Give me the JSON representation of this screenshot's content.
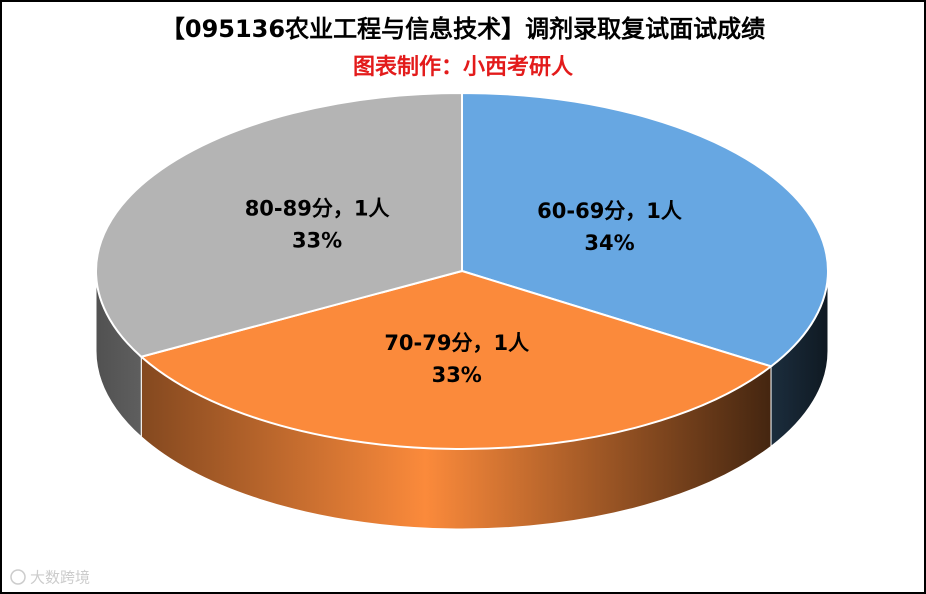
{
  "chart_data": {
    "type": "pie3d",
    "title": "【095136农业工程与信息技术】调剂录取复试面试成绩",
    "subtitle": "图表制作：小西考研人",
    "labels": [
      "60-69分，1人",
      "70-79分，1人",
      "80-89分，1人"
    ],
    "values": [
      34,
      33,
      33
    ],
    "value_labels": [
      "34%",
      "33%",
      "33%"
    ],
    "colors": [
      "#67a7e2",
      "#fb8a3b",
      "#b4b4b4"
    ],
    "subtitle_color": "#e31b1b",
    "watermark": "大数跨境"
  }
}
